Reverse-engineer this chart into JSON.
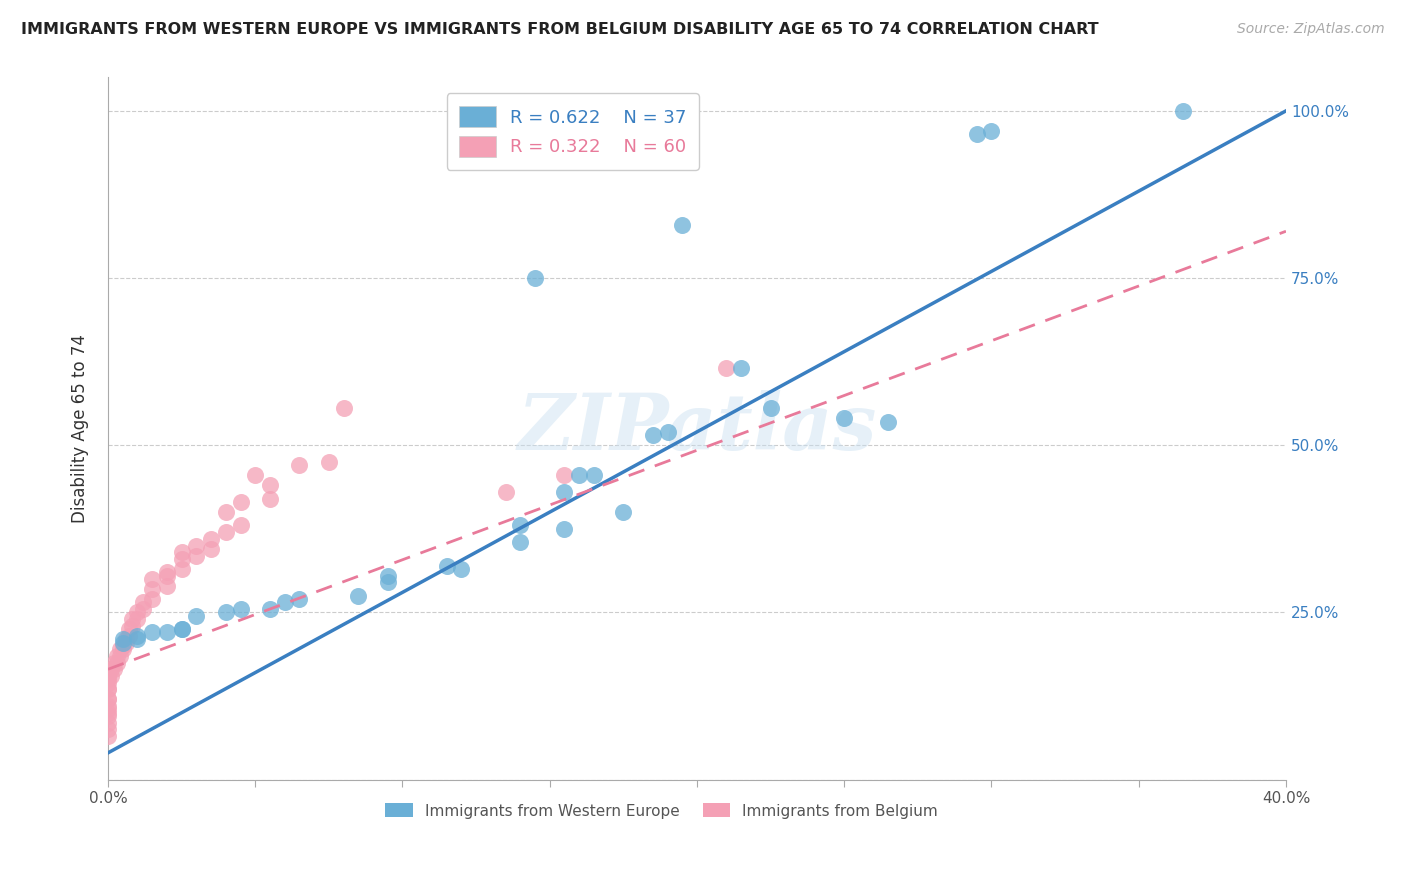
{
  "title": "IMMIGRANTS FROM WESTERN EUROPE VS IMMIGRANTS FROM BELGIUM DISABILITY AGE 65 TO 74 CORRELATION CHART",
  "source": "Source: ZipAtlas.com",
  "ylabel": "Disability Age 65 to 74",
  "x_min": 0.0,
  "x_max": 0.4,
  "y_min": 0.0,
  "y_max": 1.05,
  "x_ticks": [
    0.0,
    0.05,
    0.1,
    0.15,
    0.2,
    0.25,
    0.3,
    0.35,
    0.4
  ],
  "x_tick_labels": [
    "0.0%",
    "",
    "",
    "",
    "",
    "",
    "",
    "",
    "40.0%"
  ],
  "y_ticks": [
    0.0,
    0.25,
    0.5,
    0.75,
    1.0
  ],
  "y_tick_labels": [
    "",
    "25.0%",
    "50.0%",
    "75.0%",
    "100.0%"
  ],
  "blue_R": 0.622,
  "blue_N": 37,
  "pink_R": 0.322,
  "pink_N": 60,
  "blue_color": "#6aafd6",
  "pink_color": "#f4a0b5",
  "blue_line_color": "#3a7fc1",
  "pink_line_color": "#e87a9a",
  "watermark": "ZIPatlas",
  "blue_scatter_x": [
    0.295,
    0.3,
    0.195,
    0.145,
    0.215,
    0.225,
    0.25,
    0.265,
    0.185,
    0.19,
    0.16,
    0.165,
    0.155,
    0.175,
    0.14,
    0.155,
    0.14,
    0.115,
    0.12,
    0.095,
    0.095,
    0.085,
    0.065,
    0.06,
    0.055,
    0.045,
    0.04,
    0.03,
    0.025,
    0.025,
    0.02,
    0.015,
    0.01,
    0.01,
    0.005,
    0.005,
    0.365
  ],
  "blue_scatter_y": [
    0.965,
    0.97,
    0.83,
    0.75,
    0.615,
    0.555,
    0.54,
    0.535,
    0.515,
    0.52,
    0.455,
    0.455,
    0.43,
    0.4,
    0.38,
    0.375,
    0.355,
    0.32,
    0.315,
    0.305,
    0.295,
    0.275,
    0.27,
    0.265,
    0.255,
    0.255,
    0.25,
    0.245,
    0.225,
    0.225,
    0.22,
    0.22,
    0.215,
    0.21,
    0.21,
    0.205,
    1.0
  ],
  "pink_scatter_x": [
    0.21,
    0.155,
    0.135,
    0.08,
    0.075,
    0.065,
    0.055,
    0.055,
    0.05,
    0.045,
    0.045,
    0.04,
    0.04,
    0.035,
    0.035,
    0.03,
    0.03,
    0.025,
    0.025,
    0.025,
    0.02,
    0.02,
    0.02,
    0.015,
    0.015,
    0.015,
    0.012,
    0.012,
    0.01,
    0.01,
    0.008,
    0.008,
    0.007,
    0.007,
    0.006,
    0.006,
    0.005,
    0.005,
    0.004,
    0.004,
    0.003,
    0.003,
    0.002,
    0.002,
    0.001,
    0.001,
    0.0,
    0.0,
    0.0,
    0.0,
    0.0,
    0.0,
    0.0,
    0.0,
    0.0,
    0.0,
    0.0,
    0.0,
    0.0,
    0.0
  ],
  "pink_scatter_y": [
    0.615,
    0.455,
    0.43,
    0.555,
    0.475,
    0.47,
    0.44,
    0.42,
    0.455,
    0.415,
    0.38,
    0.4,
    0.37,
    0.36,
    0.345,
    0.35,
    0.335,
    0.34,
    0.33,
    0.315,
    0.31,
    0.305,
    0.29,
    0.3,
    0.285,
    0.27,
    0.265,
    0.255,
    0.25,
    0.24,
    0.24,
    0.23,
    0.225,
    0.215,
    0.21,
    0.205,
    0.2,
    0.195,
    0.195,
    0.185,
    0.185,
    0.175,
    0.175,
    0.165,
    0.165,
    0.155,
    0.155,
    0.15,
    0.145,
    0.135,
    0.135,
    0.12,
    0.12,
    0.11,
    0.105,
    0.1,
    0.095,
    0.085,
    0.075,
    0.065
  ],
  "blue_trend_x": [
    0.0,
    0.4
  ],
  "blue_trend_y": [
    0.04,
    1.0
  ],
  "pink_trend_x": [
    0.0,
    0.4
  ],
  "pink_trend_y": [
    0.165,
    0.82
  ]
}
